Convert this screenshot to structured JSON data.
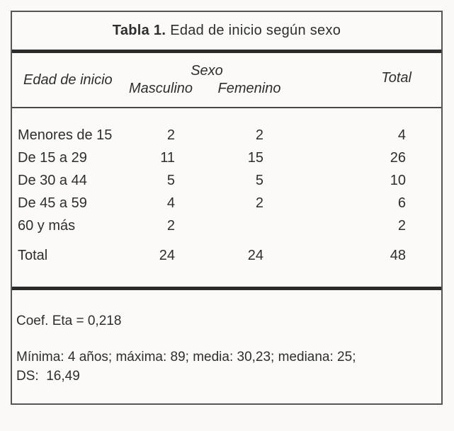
{
  "table": {
    "title": {
      "label": "Tabla 1.",
      "text": "Edad de inicio según sexo"
    },
    "header": {
      "row_dimension": "Edad de inicio",
      "group": "Sexo",
      "col_masculino": "Masculino",
      "col_femenino": "Femenino",
      "col_total": "Total"
    },
    "rows": [
      {
        "label": "Menores de 15",
        "masculino": "2",
        "femenino": "2",
        "total": "4"
      },
      {
        "label": "De 15 a 29",
        "masculino": "11",
        "femenino": "15",
        "total": "26"
      },
      {
        "label": "De 30 a 44",
        "masculino": "5",
        "femenino": "5",
        "total": "10"
      },
      {
        "label": "De 45 a 59",
        "masculino": "4",
        "femenino": "2",
        "total": "6"
      },
      {
        "label": "60 y más",
        "masculino": "2",
        "femenino": "",
        "total": "2"
      }
    ],
    "totals": {
      "label": "Total",
      "masculino": "24",
      "femenino": "24",
      "total": "48"
    },
    "footnotes": {
      "coef": "Coef. Eta = 0,218",
      "stats_line1": "Mínima: 4 años; máxima: 89; media: 30,23; mediana: 25;",
      "stats_line2": "DS:  16,49"
    }
  }
}
